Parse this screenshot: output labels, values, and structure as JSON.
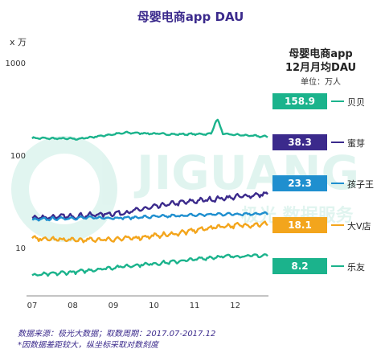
{
  "chart_data": {
    "type": "line",
    "title": "母婴电商app DAU",
    "y_unit": "x 万",
    "y_scale": "log",
    "ylim": [
      3,
      1000
    ],
    "y_ticks": [
      {
        "value": 10,
        "label": "10"
      },
      {
        "value": 100,
        "label": "100"
      },
      {
        "value": 1000,
        "label": "1000"
      }
    ],
    "x_ticks": [
      "07",
      "08",
      "09",
      "10",
      "11",
      "12"
    ],
    "x_range": [
      "2017-07",
      "2017-12"
    ],
    "panel_title": [
      "母婴电商app",
      "12月月均DAU"
    ],
    "panel_unit": "单位：万人",
    "series": [
      {
        "name": "贝贝",
        "color": "#1bb38c",
        "dec_avg": "158.9",
        "monthly": [
          153,
          150,
          175,
          168,
          170,
          158
        ],
        "noise": 0.025
      },
      {
        "name": "蜜芽",
        "color": "#3b2a8c",
        "dec_avg": "38.3",
        "monthly": [
          21,
          22,
          24,
          30,
          34,
          38
        ],
        "noise": 0.07
      },
      {
        "name": "孩子王",
        "color": "#1f8fcf",
        "dec_avg": "23.3",
        "monthly": [
          20,
          21,
          21,
          22,
          23,
          23.3
        ],
        "noise": 0.04
      },
      {
        "name": "大V店",
        "color": "#f3a51c",
        "dec_avg": "18.1",
        "monthly": [
          12.5,
          12,
          12.5,
          14,
          17,
          18
        ],
        "noise": 0.07
      },
      {
        "name": "乐友",
        "color": "#1bb38c",
        "dec_avg": "8.2",
        "monthly": [
          5,
          5.5,
          6.3,
          7,
          8,
          8.2
        ],
        "noise": 0.05
      }
    ]
  },
  "watermark": {
    "logo_text": "JIGUANG",
    "sub_text": "极光 数据服务"
  },
  "footnotes": [
    "数据来源：极光大数据；取数周期：2017.07-2017.12",
    "*因数据差距较大，纵坐标采取对数刻度"
  ]
}
